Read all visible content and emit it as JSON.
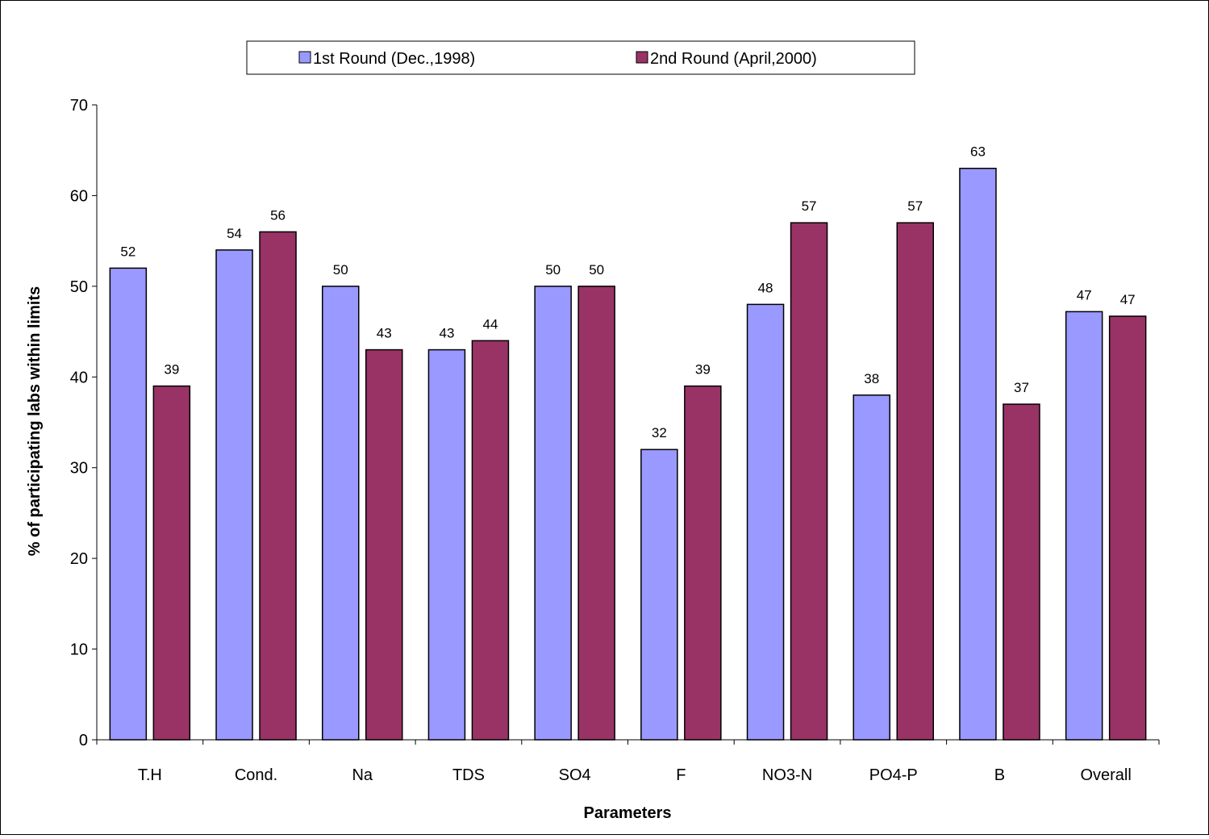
{
  "chart_data": {
    "type": "bar",
    "title": "",
    "xlabel": "Parameters",
    "ylabel": "% of participating labs within limits",
    "ylim": [
      0,
      70
    ],
    "yticks": [
      0,
      10,
      20,
      30,
      40,
      50,
      60,
      70
    ],
    "grid": false,
    "legend_position": "top",
    "categories": [
      "T.H",
      "Cond.",
      "Na",
      "TDS",
      "SO4",
      "F",
      "NO3-N",
      "PO4-P",
      "B",
      "Overall"
    ],
    "series": [
      {
        "name": "1st Round (Dec.,1998)",
        "color": "#9999ff",
        "values": [
          52,
          54,
          50,
          43,
          50,
          32,
          48,
          38,
          63,
          47.2
        ],
        "labels": [
          "52",
          "54",
          "50",
          "43",
          "50",
          "32",
          "48",
          "38",
          "63",
          "47"
        ]
      },
      {
        "name": "2nd Round (April,2000)",
        "color": "#993366",
        "values": [
          39,
          56,
          43,
          44,
          50,
          39,
          57,
          57,
          37,
          46.7
        ],
        "labels": [
          "39",
          "56",
          "43",
          "44",
          "50",
          "39",
          "57",
          "57",
          "37",
          "47"
        ]
      }
    ]
  }
}
